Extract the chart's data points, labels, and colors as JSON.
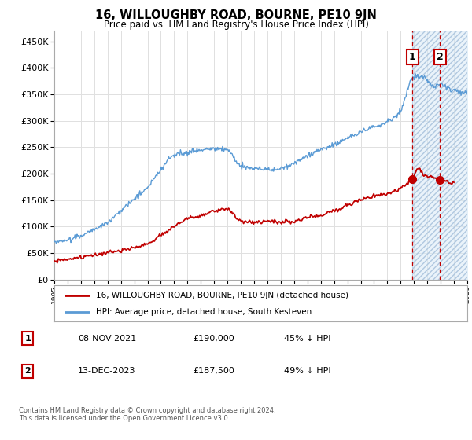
{
  "title": "16, WILLOUGHBY ROAD, BOURNE, PE10 9JN",
  "subtitle": "Price paid vs. HM Land Registry's House Price Index (HPI)",
  "yticks": [
    0,
    50000,
    100000,
    150000,
    200000,
    250000,
    300000,
    350000,
    400000,
    450000
  ],
  "xlim_start": 1995,
  "xlim_end": 2026,
  "ylim_min": 0,
  "ylim_max": 470000,
  "hpi_color": "#5b9bd5",
  "price_color": "#c00000",
  "vline_color": "#c00000",
  "sale1_x": 2021.88,
  "sale1_y": 190000,
  "sale2_x": 2023.96,
  "sale2_y": 187500,
  "hatch_start": 2021.88,
  "legend_line1": "16, WILLOUGHBY ROAD, BOURNE, PE10 9JN (detached house)",
  "legend_line2": "HPI: Average price, detached house, South Kesteven",
  "table_row1": [
    "1",
    "08-NOV-2021",
    "£190,000",
    "45% ↓ HPI"
  ],
  "table_row2": [
    "2",
    "13-DEC-2023",
    "£187,500",
    "49% ↓ HPI"
  ],
  "footnote": "Contains HM Land Registry data © Crown copyright and database right 2024.\nThis data is licensed under the Open Government Licence v3.0.",
  "grid_color": "#e0e0e0",
  "background_color": "#ffffff"
}
